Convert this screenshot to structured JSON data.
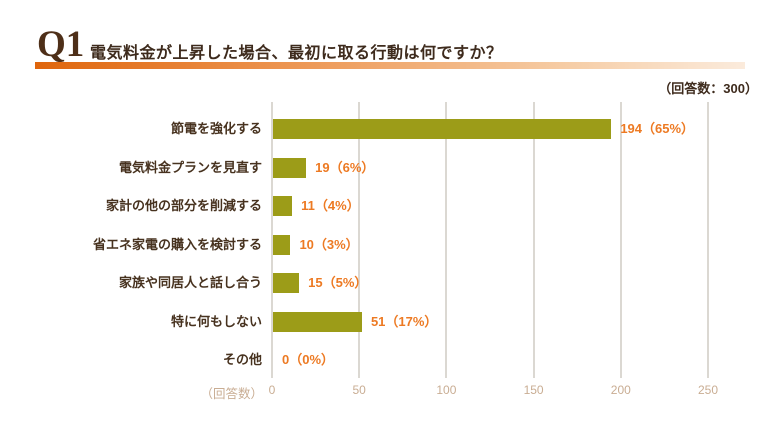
{
  "header": {
    "q_label": "Q1",
    "title": "電気料金が上昇した場合、最初に取る行動は何ですか？",
    "respondents_note": "（回答数：300）"
  },
  "chart_data": {
    "type": "bar",
    "orientation": "horizontal",
    "title": "電気料金が上昇した場合、最初に取る行動は何ですか？",
    "categories": [
      "節電を強化する",
      "電気料金プランを見直す",
      "家計の他の部分を削減する",
      "省エネ家電の購入を検討する",
      "家族や同居人と話し合う",
      "特に何もしない",
      "その他"
    ],
    "values": [
      194,
      19,
      11,
      10,
      15,
      51,
      0
    ],
    "percentages": [
      65,
      6,
      4,
      3,
      5,
      17,
      0
    ],
    "value_labels": [
      "194（65%）",
      "19（6%）",
      "11（4%）",
      "10（3%）",
      "15（5%）",
      "51（17%）",
      "0（0%）"
    ],
    "total_respondents": 300,
    "xlabel": "（回答数）",
    "x_ticks": [
      0,
      50,
      100,
      150,
      200,
      250
    ],
    "xlim": [
      0,
      250
    ],
    "grid": true,
    "legend": "none",
    "colors": {
      "bar": "#9C9C18",
      "value_text": "#ED7A23",
      "category_text": "#47321F",
      "tick_text": "#C9AD93",
      "gridline": "#DBD8D2",
      "header_text": "#3E2B1D",
      "accent_gradient_start": "#DF650C",
      "accent_gradient_end": "#FBEBDC"
    }
  }
}
